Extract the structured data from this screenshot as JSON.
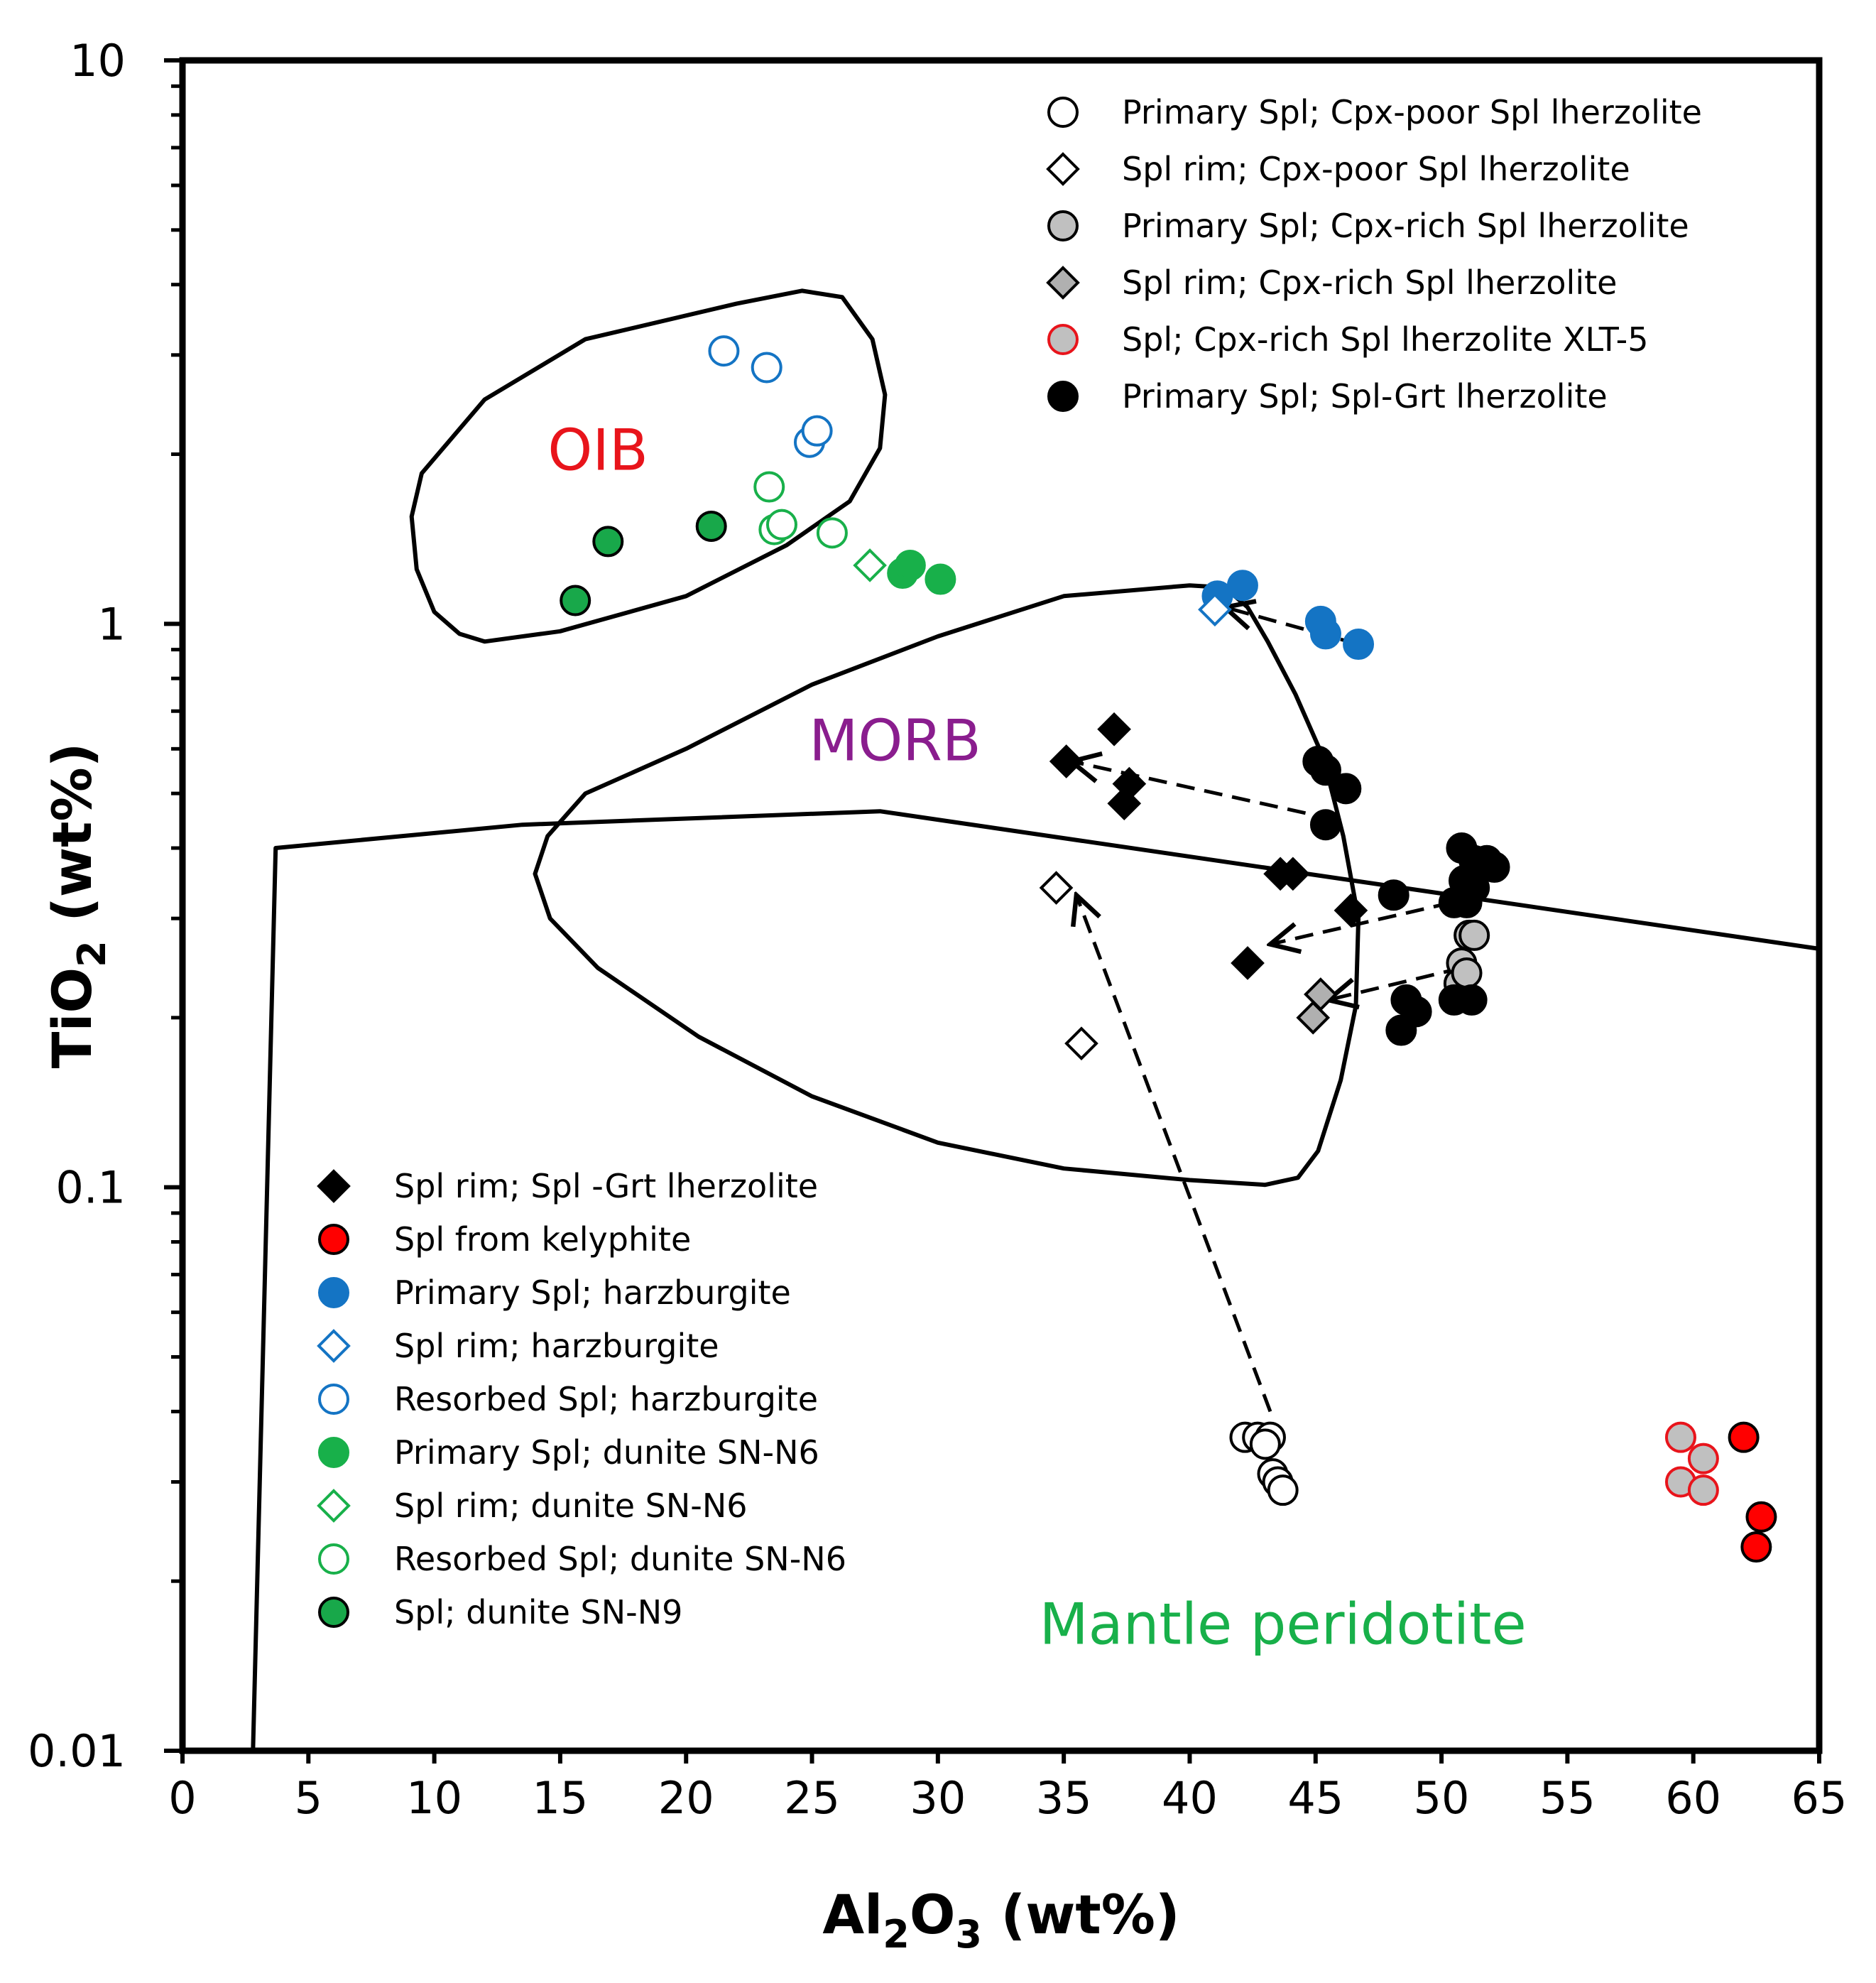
{
  "chart_data": {
    "type": "scatter",
    "title": "",
    "xlabel": "Al2O3 (wt%)",
    "ylabel": "TiO2 (wt%)",
    "xlabel_parts": {
      "a": "Al",
      "b": "2",
      "c": "O",
      "d": "3",
      "e": " (wt%)"
    },
    "ylabel_parts": {
      "a": "TiO",
      "b": "2",
      "c": " (wt%)"
    },
    "x_scale": "linear",
    "y_scale": "log",
    "xlim": [
      0,
      65
    ],
    "ylim": [
      0.01,
      10
    ],
    "x_ticks": [
      0,
      5,
      10,
      15,
      20,
      25,
      30,
      35,
      40,
      45,
      50,
      55,
      60,
      65
    ],
    "x_tick_labels": [
      "0",
      "5",
      "10",
      "15",
      "20",
      "25",
      "30",
      "35",
      "40",
      "45",
      "50",
      "55",
      "60",
      "65"
    ],
    "y_ticks": [
      0.01,
      0.1,
      1,
      10
    ],
    "y_tick_labels": [
      "0.01",
      "0.1",
      "1",
      "10"
    ],
    "grid": false,
    "fields": [
      {
        "name": "OIB",
        "label_color": "#e8141b",
        "label_pos": {
          "x": 16.5,
          "y": 2.0
        },
        "closed": true,
        "points": [
          [
            24.6,
            3.9
          ],
          [
            22,
            3.7
          ],
          [
            16,
            3.2
          ],
          [
            12,
            2.5
          ],
          [
            9.5,
            1.85
          ],
          [
            9.1,
            1.55
          ],
          [
            9.3,
            1.25
          ],
          [
            10,
            1.05
          ],
          [
            11,
            0.96
          ],
          [
            12,
            0.93
          ],
          [
            15,
            0.97
          ],
          [
            20,
            1.12
          ],
          [
            24,
            1.38
          ],
          [
            26.5,
            1.65
          ],
          [
            27.7,
            2.05
          ],
          [
            27.9,
            2.55
          ],
          [
            27.4,
            3.2
          ],
          [
            26.2,
            3.8
          ],
          [
            24.6,
            3.9
          ]
        ]
      },
      {
        "name": "MORB",
        "label_color": "#8a1d8e",
        "label_pos": {
          "x": 28.3,
          "y": 0.61
        },
        "closed": true,
        "points": [
          [
            40,
            1.17
          ],
          [
            35,
            1.12
          ],
          [
            30,
            0.95
          ],
          [
            25,
            0.78
          ],
          [
            20,
            0.6
          ],
          [
            16,
            0.5
          ],
          [
            14.5,
            0.42
          ],
          [
            14,
            0.36
          ],
          [
            14.6,
            0.3
          ],
          [
            16.5,
            0.245
          ],
          [
            20.5,
            0.185
          ],
          [
            25,
            0.145
          ],
          [
            30,
            0.12
          ],
          [
            35,
            0.108
          ],
          [
            40,
            0.103
          ],
          [
            43,
            0.101
          ],
          [
            44.3,
            0.104
          ],
          [
            45.1,
            0.116
          ],
          [
            46,
            0.155
          ],
          [
            46.6,
            0.21
          ],
          [
            46.7,
            0.3
          ],
          [
            46.1,
            0.42
          ],
          [
            45.3,
            0.58
          ],
          [
            44.2,
            0.75
          ],
          [
            43.1,
            0.93
          ],
          [
            42.3,
            1.07
          ],
          [
            41.4,
            1.16
          ],
          [
            40,
            1.17
          ]
        ]
      },
      {
        "name": "Mantle peridotite",
        "label_color": "#18b04a",
        "label_pos": {
          "x": 43.7,
          "y": 0.0165
        },
        "closed": false,
        "points": [
          [
            2.8,
            0.01
          ],
          [
            3.7,
            0.4
          ],
          [
            13.5,
            0.44
          ],
          [
            27.7,
            0.465
          ],
          [
            65,
            0.265
          ]
        ]
      }
    ],
    "series": [
      {
        "name": "Primary Spl; Cpx-poor Spl lherzolite",
        "marker": "circle",
        "fill": "#ffffff",
        "stroke": "#000000",
        "points": [
          [
            42.2,
            0.036
          ],
          [
            42.7,
            0.036
          ],
          [
            43.2,
            0.036
          ],
          [
            43,
            0.035
          ],
          [
            43.3,
            0.031
          ],
          [
            43.5,
            0.03
          ],
          [
            43.7,
            0.029
          ]
        ]
      },
      {
        "name": "Spl rim; Cpx-poor Spl lherzolite",
        "marker": "diamond",
        "fill": "#ffffff",
        "stroke": "#000000",
        "points": [
          [
            34.7,
            0.34
          ],
          [
            35.7,
            0.18
          ]
        ]
      },
      {
        "name": "Primary Spl; Cpx-rich Spl lherzolite",
        "marker": "circle",
        "fill": "#c0c0c0",
        "stroke": "#000000",
        "points": [
          [
            51.1,
            0.28
          ],
          [
            50.8,
            0.25
          ],
          [
            50.7,
            0.23
          ],
          [
            51,
            0.24
          ],
          [
            51.3,
            0.28
          ]
        ]
      },
      {
        "name": "Spl rim; Cpx-rich Spl lherzolite",
        "marker": "diamond",
        "fill": "#b0b0b0",
        "stroke": "#000000",
        "points": [
          [
            45.2,
            0.22
          ],
          [
            44.9,
            0.2
          ]
        ]
      },
      {
        "name": "Spl; Cpx-rich Spl lherzolite XLT-5",
        "marker": "circle",
        "fill": "#c0c0c0",
        "stroke": "#e8141b",
        "points": [
          [
            59.5,
            0.036
          ],
          [
            60.4,
            0.033
          ],
          [
            59.5,
            0.03
          ],
          [
            60.4,
            0.029
          ]
        ]
      },
      {
        "name": "Primary Spl; Spl-Grt lherzolite",
        "marker": "circle",
        "fill": "#000000",
        "stroke": "#000000",
        "points": [
          [
            45.1,
            0.57
          ],
          [
            45.4,
            0.55
          ],
          [
            46.2,
            0.51
          ],
          [
            45.4,
            0.44
          ],
          [
            50.8,
            0.4
          ],
          [
            51.3,
            0.38
          ],
          [
            51.8,
            0.38
          ],
          [
            52.1,
            0.37
          ],
          [
            50.9,
            0.35
          ],
          [
            51.3,
            0.34
          ],
          [
            50.5,
            0.32
          ],
          [
            51,
            0.32
          ],
          [
            48.1,
            0.33
          ],
          [
            50.5,
            0.215
          ],
          [
            51.2,
            0.215
          ],
          [
            48.6,
            0.215
          ],
          [
            49,
            0.205
          ],
          [
            48.4,
            0.19
          ]
        ]
      },
      {
        "name": "Spl rim; Spl -Grt lherzolite",
        "marker": "diamond",
        "fill": "#000000",
        "stroke": "#000000",
        "points": [
          [
            37,
            0.65
          ],
          [
            35.1,
            0.57
          ],
          [
            37.6,
            0.52
          ],
          [
            37.4,
            0.48
          ],
          [
            43.6,
            0.36
          ],
          [
            44.1,
            0.36
          ],
          [
            46.4,
            0.31
          ],
          [
            42.3,
            0.25
          ]
        ]
      },
      {
        "name": "Spl from kelyphite",
        "marker": "circle",
        "fill": "#ff0000",
        "stroke": "#000000",
        "points": [
          [
            62,
            0.036
          ],
          [
            62.7,
            0.026
          ],
          [
            62.5,
            0.023
          ]
        ]
      },
      {
        "name": "Primary Spl; harzburgite",
        "marker": "circle",
        "fill": "#1474c4",
        "stroke": "#1474c4",
        "points": [
          [
            41.1,
            1.12
          ],
          [
            42.1,
            1.17
          ],
          [
            45.2,
            1.01
          ],
          [
            45.4,
            0.96
          ],
          [
            46.7,
            0.92
          ]
        ]
      },
      {
        "name": "Spl rim; harzburgite",
        "marker": "diamond",
        "fill": "#ffffff",
        "stroke": "#1474c4",
        "points": [
          [
            41,
            1.06
          ]
        ]
      },
      {
        "name": "Resorbed Spl; harzburgite",
        "marker": "circle",
        "fill": "#ffffff",
        "stroke": "#1474c4",
        "points": [
          [
            21.5,
            3.05
          ],
          [
            23.2,
            2.85
          ],
          [
            24.9,
            2.1
          ],
          [
            25.2,
            2.2
          ]
        ]
      },
      {
        "name": "Primary Spl; dunite SN-N6",
        "marker": "circle",
        "fill": "#18b04a",
        "stroke": "#18b04a",
        "points": [
          [
            28.6,
            1.23
          ],
          [
            28.9,
            1.27
          ],
          [
            30.1,
            1.2
          ]
        ]
      },
      {
        "name": "Spl rim; dunite SN-N6",
        "marker": "diamond",
        "fill": "#ffffff",
        "stroke": "#18b04a",
        "points": [
          [
            27.3,
            1.27
          ]
        ]
      },
      {
        "name": "Resorbed Spl; dunite SN-N6",
        "marker": "circle",
        "fill": "#ffffff",
        "stroke": "#18b04a",
        "points": [
          [
            23.3,
            1.75
          ],
          [
            23.5,
            1.47
          ],
          [
            23.8,
            1.5
          ],
          [
            25.8,
            1.45
          ]
        ]
      },
      {
        "name": "Spl; dunite SN-N9",
        "marker": "circle",
        "fill": "#18a84a",
        "stroke": "#000000",
        "points": [
          [
            15.6,
            1.1
          ],
          [
            16.9,
            1.4
          ],
          [
            21,
            1.49
          ]
        ]
      }
    ],
    "arrows": [
      {
        "from": [
          43.2,
          0.04
        ],
        "to": [
          35.5,
          0.33
        ]
      },
      {
        "from": [
          46.7,
          0.92
        ],
        "to": [
          41.4,
          1.07
        ]
      },
      {
        "from": [
          45.7,
          0.45
        ],
        "to": [
          35.3,
          0.57
        ]
      },
      {
        "from": [
          50.4,
          0.32
        ],
        "to": [
          43.2,
          0.27
        ]
      },
      {
        "from": [
          50.8,
          0.245
        ],
        "to": [
          45.5,
          0.215
        ]
      }
    ],
    "legend_top": [
      0,
      1,
      2,
      3,
      4,
      5
    ],
    "legend_bottom": [
      6,
      7,
      8,
      9,
      10,
      11,
      12,
      13,
      14
    ],
    "legend_placement": "top-right and bottom-left inside plot"
  }
}
